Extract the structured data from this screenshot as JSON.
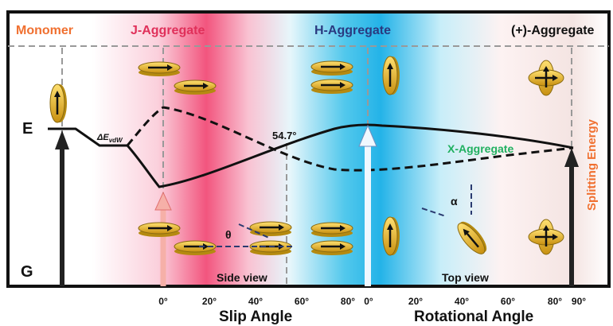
{
  "top_labels": {
    "monomer": "Monomer",
    "j_aggregate": "J-Aggregate",
    "h_aggregate": "H-Aggregate",
    "plus_aggregate": "(+)-Aggregate"
  },
  "levels": {
    "excited": "E",
    "ground": "G"
  },
  "vdw": {
    "main": "ΔE",
    "sub": "vdW"
  },
  "magic_angle": "54.7°",
  "x_aggregate": "X-Aggregate",
  "splitting_energy": "Splitting Energy",
  "theta": "θ",
  "alpha": "α",
  "side_view": "Side view",
  "top_view": "Top view",
  "slip_ticks": [
    "0°",
    "20°",
    "40°",
    "60°",
    "80°"
  ],
  "rotational_ticks": [
    "0°",
    "20°",
    "40°",
    "60°",
    "80°",
    "90°"
  ],
  "slip_axis": "Slip Angle",
  "rotational_axis": "Rotational Angle"
}
